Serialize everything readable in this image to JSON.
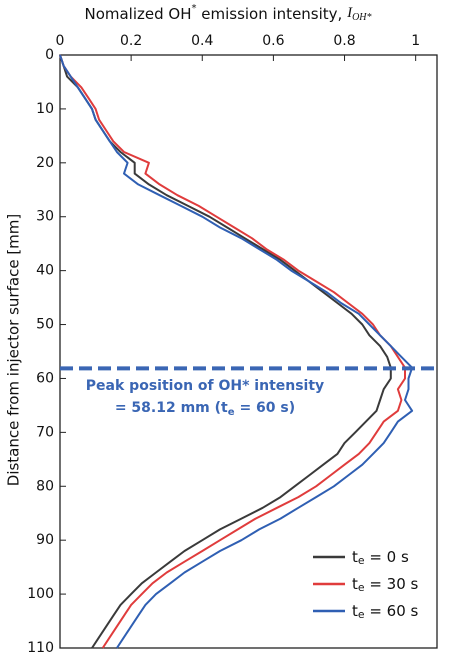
{
  "chart_data": {
    "type": "line",
    "x_label_parts": [
      "Nomalized OH",
      "*",
      " emission intensity, ",
      "I",
      "OH*"
    ],
    "y_label": "Distance from injector surface [mm]",
    "xlim": [
      0,
      1.06
    ],
    "xticks": [
      0,
      0.2,
      0.4,
      0.6,
      0.8,
      1
    ],
    "ylim": [
      0,
      110
    ],
    "yticks": [
      0,
      10,
      20,
      30,
      40,
      50,
      60,
      70,
      80,
      90,
      100,
      110
    ],
    "y_reversed": true,
    "grid": false,
    "legend": "lower right",
    "distance": [
      0,
      2,
      4,
      6,
      8,
      10,
      12,
      14,
      16,
      18,
      20,
      22,
      24,
      26,
      28,
      30,
      32,
      34,
      36,
      38,
      40,
      42,
      44,
      46,
      48,
      50,
      52,
      54,
      56,
      58,
      60,
      62,
      64,
      66,
      68,
      70,
      72,
      74,
      76,
      78,
      80,
      82,
      84,
      86,
      88,
      90,
      92,
      94,
      96,
      98,
      100,
      102,
      104,
      106,
      108,
      110
    ],
    "series": [
      {
        "name": "te = 0 s",
        "color": "#3a3a3a",
        "values": [
          0,
          0.01,
          0.02,
          0.05,
          0.07,
          0.09,
          0.1,
          0.12,
          0.14,
          0.17,
          0.21,
          0.21,
          0.25,
          0.3,
          0.36,
          0.42,
          0.47,
          0.52,
          0.57,
          0.62,
          0.66,
          0.7,
          0.74,
          0.78,
          0.82,
          0.85,
          0.87,
          0.9,
          0.92,
          0.93,
          0.93,
          0.91,
          0.9,
          0.89,
          0.86,
          0.83,
          0.8,
          0.78,
          0.74,
          0.7,
          0.66,
          0.62,
          0.57,
          0.51,
          0.45,
          0.4,
          0.35,
          0.31,
          0.27,
          0.23,
          0.2,
          0.17,
          0.15,
          0.13,
          0.11,
          0.09
        ]
      },
      {
        "name": "te = 30 s",
        "color": "#e03c3c",
        "values": [
          0,
          0.01,
          0.03,
          0.06,
          0.08,
          0.1,
          0.11,
          0.13,
          0.15,
          0.18,
          0.25,
          0.24,
          0.28,
          0.33,
          0.39,
          0.44,
          0.49,
          0.54,
          0.58,
          0.63,
          0.67,
          0.72,
          0.77,
          0.81,
          0.85,
          0.88,
          0.9,
          0.93,
          0.95,
          0.97,
          0.97,
          0.95,
          0.96,
          0.95,
          0.91,
          0.89,
          0.87,
          0.84,
          0.8,
          0.76,
          0.72,
          0.67,
          0.61,
          0.55,
          0.5,
          0.45,
          0.4,
          0.35,
          0.3,
          0.26,
          0.23,
          0.2,
          0.18,
          0.16,
          0.14,
          0.12
        ]
      },
      {
        "name": "te = 60 s",
        "color": "#2f5fb3",
        "values": [
          0,
          0.01,
          0.03,
          0.05,
          0.07,
          0.09,
          0.1,
          0.12,
          0.14,
          0.16,
          0.19,
          0.18,
          0.22,
          0.28,
          0.34,
          0.4,
          0.45,
          0.51,
          0.56,
          0.61,
          0.65,
          0.7,
          0.75,
          0.79,
          0.84,
          0.87,
          0.9,
          0.93,
          0.96,
          0.99,
          0.98,
          0.98,
          0.97,
          0.99,
          0.95,
          0.93,
          0.91,
          0.88,
          0.85,
          0.81,
          0.77,
          0.72,
          0.67,
          0.62,
          0.56,
          0.51,
          0.45,
          0.4,
          0.35,
          0.31,
          0.27,
          0.24,
          0.22,
          0.2,
          0.18,
          0.16
        ]
      }
    ],
    "peak_line": {
      "value": 58.12,
      "color": "#3a66b4"
    },
    "annotation": [
      "Peak position of OH* intensity",
      "= 58.12 mm (te = 60 s)"
    ]
  }
}
